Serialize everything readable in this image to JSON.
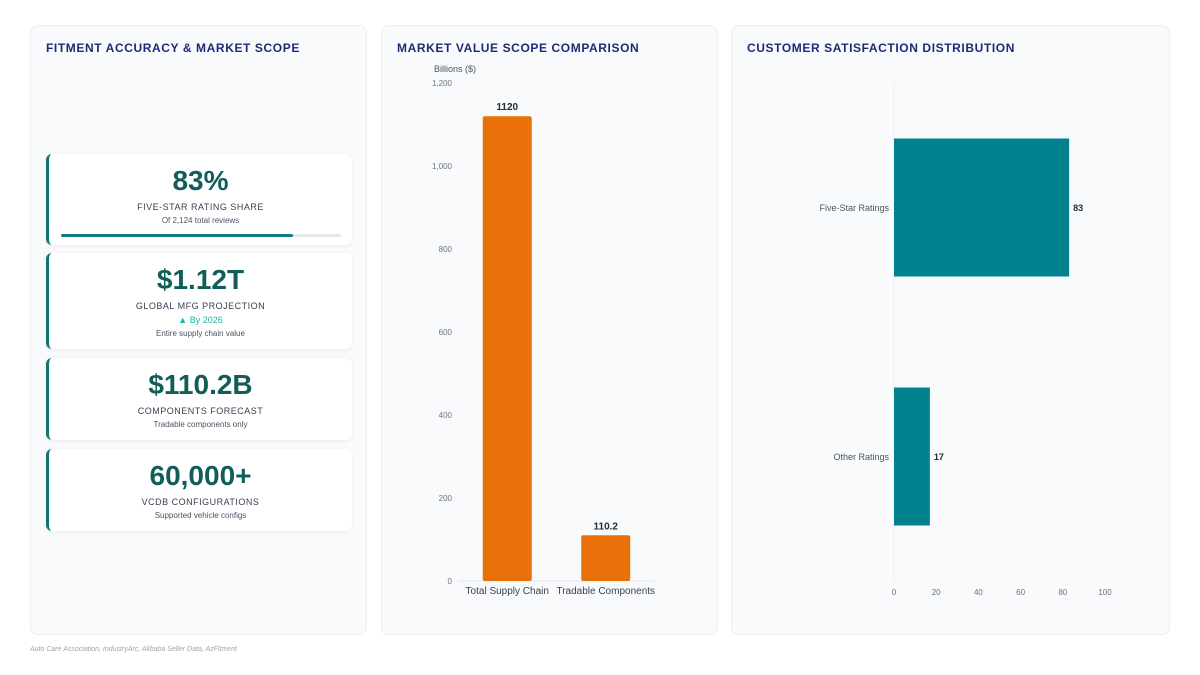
{
  "panels": {
    "kpi_title": "FITMENT ACCURACY & MARKET SCOPE",
    "bar_title": "MARKET VALUE SCOPE COMPARISON",
    "hbar_title": "CUSTOMER SATISFACTION DISTRIBUTION"
  },
  "kpis": [
    {
      "value": "83%",
      "label": "FIVE-STAR RATING SHARE",
      "sub": "Of 2,124 total reviews",
      "progress": 0.83
    },
    {
      "value": "$1.12T",
      "label": "GLOBAL MFG PROJECTION",
      "trend": "▲ By 2026",
      "sub": "Entire supply chain value"
    },
    {
      "value": "$110.2B",
      "label": "COMPONENTS FORECAST",
      "sub": "Tradable components only"
    },
    {
      "value": "60,000+",
      "label": "VCDB CONFIGURATIONS",
      "sub": "Supported vehicle configs"
    }
  ],
  "chart_data": [
    {
      "type": "bar",
      "title": "MARKET VALUE SCOPE COMPARISON",
      "ylabel": "Billions ($)",
      "categories": [
        "Total Supply Chain",
        "Tradable Components"
      ],
      "values": [
        1120,
        110.2
      ],
      "value_labels": [
        "1120",
        "110.2"
      ],
      "ylim": [
        0,
        1200
      ],
      "yticks": [
        0,
        200,
        400,
        600,
        800,
        1000,
        1200
      ],
      "ytick_labels": [
        "0",
        "200",
        "400",
        "600",
        "800",
        "1,000",
        "1,200"
      ],
      "color": "#e8710a",
      "grid": false
    },
    {
      "type": "bar",
      "orientation": "horizontal",
      "title": "CUSTOMER SATISFACTION DISTRIBUTION",
      "categories": [
        "Five-Star Ratings",
        "Other Ratings"
      ],
      "values": [
        83,
        17
      ],
      "value_labels": [
        "83",
        "17"
      ],
      "xlim": [
        0,
        100
      ],
      "xticks": [
        0,
        20,
        40,
        60,
        80,
        100
      ],
      "xtick_labels": [
        "0",
        "20",
        "40",
        "60",
        "80",
        "100"
      ],
      "color": "#00838f",
      "grid": false
    }
  ],
  "footer": "Auto Care Association, IndustryArc, Alibaba Seller Data, AzFitment"
}
